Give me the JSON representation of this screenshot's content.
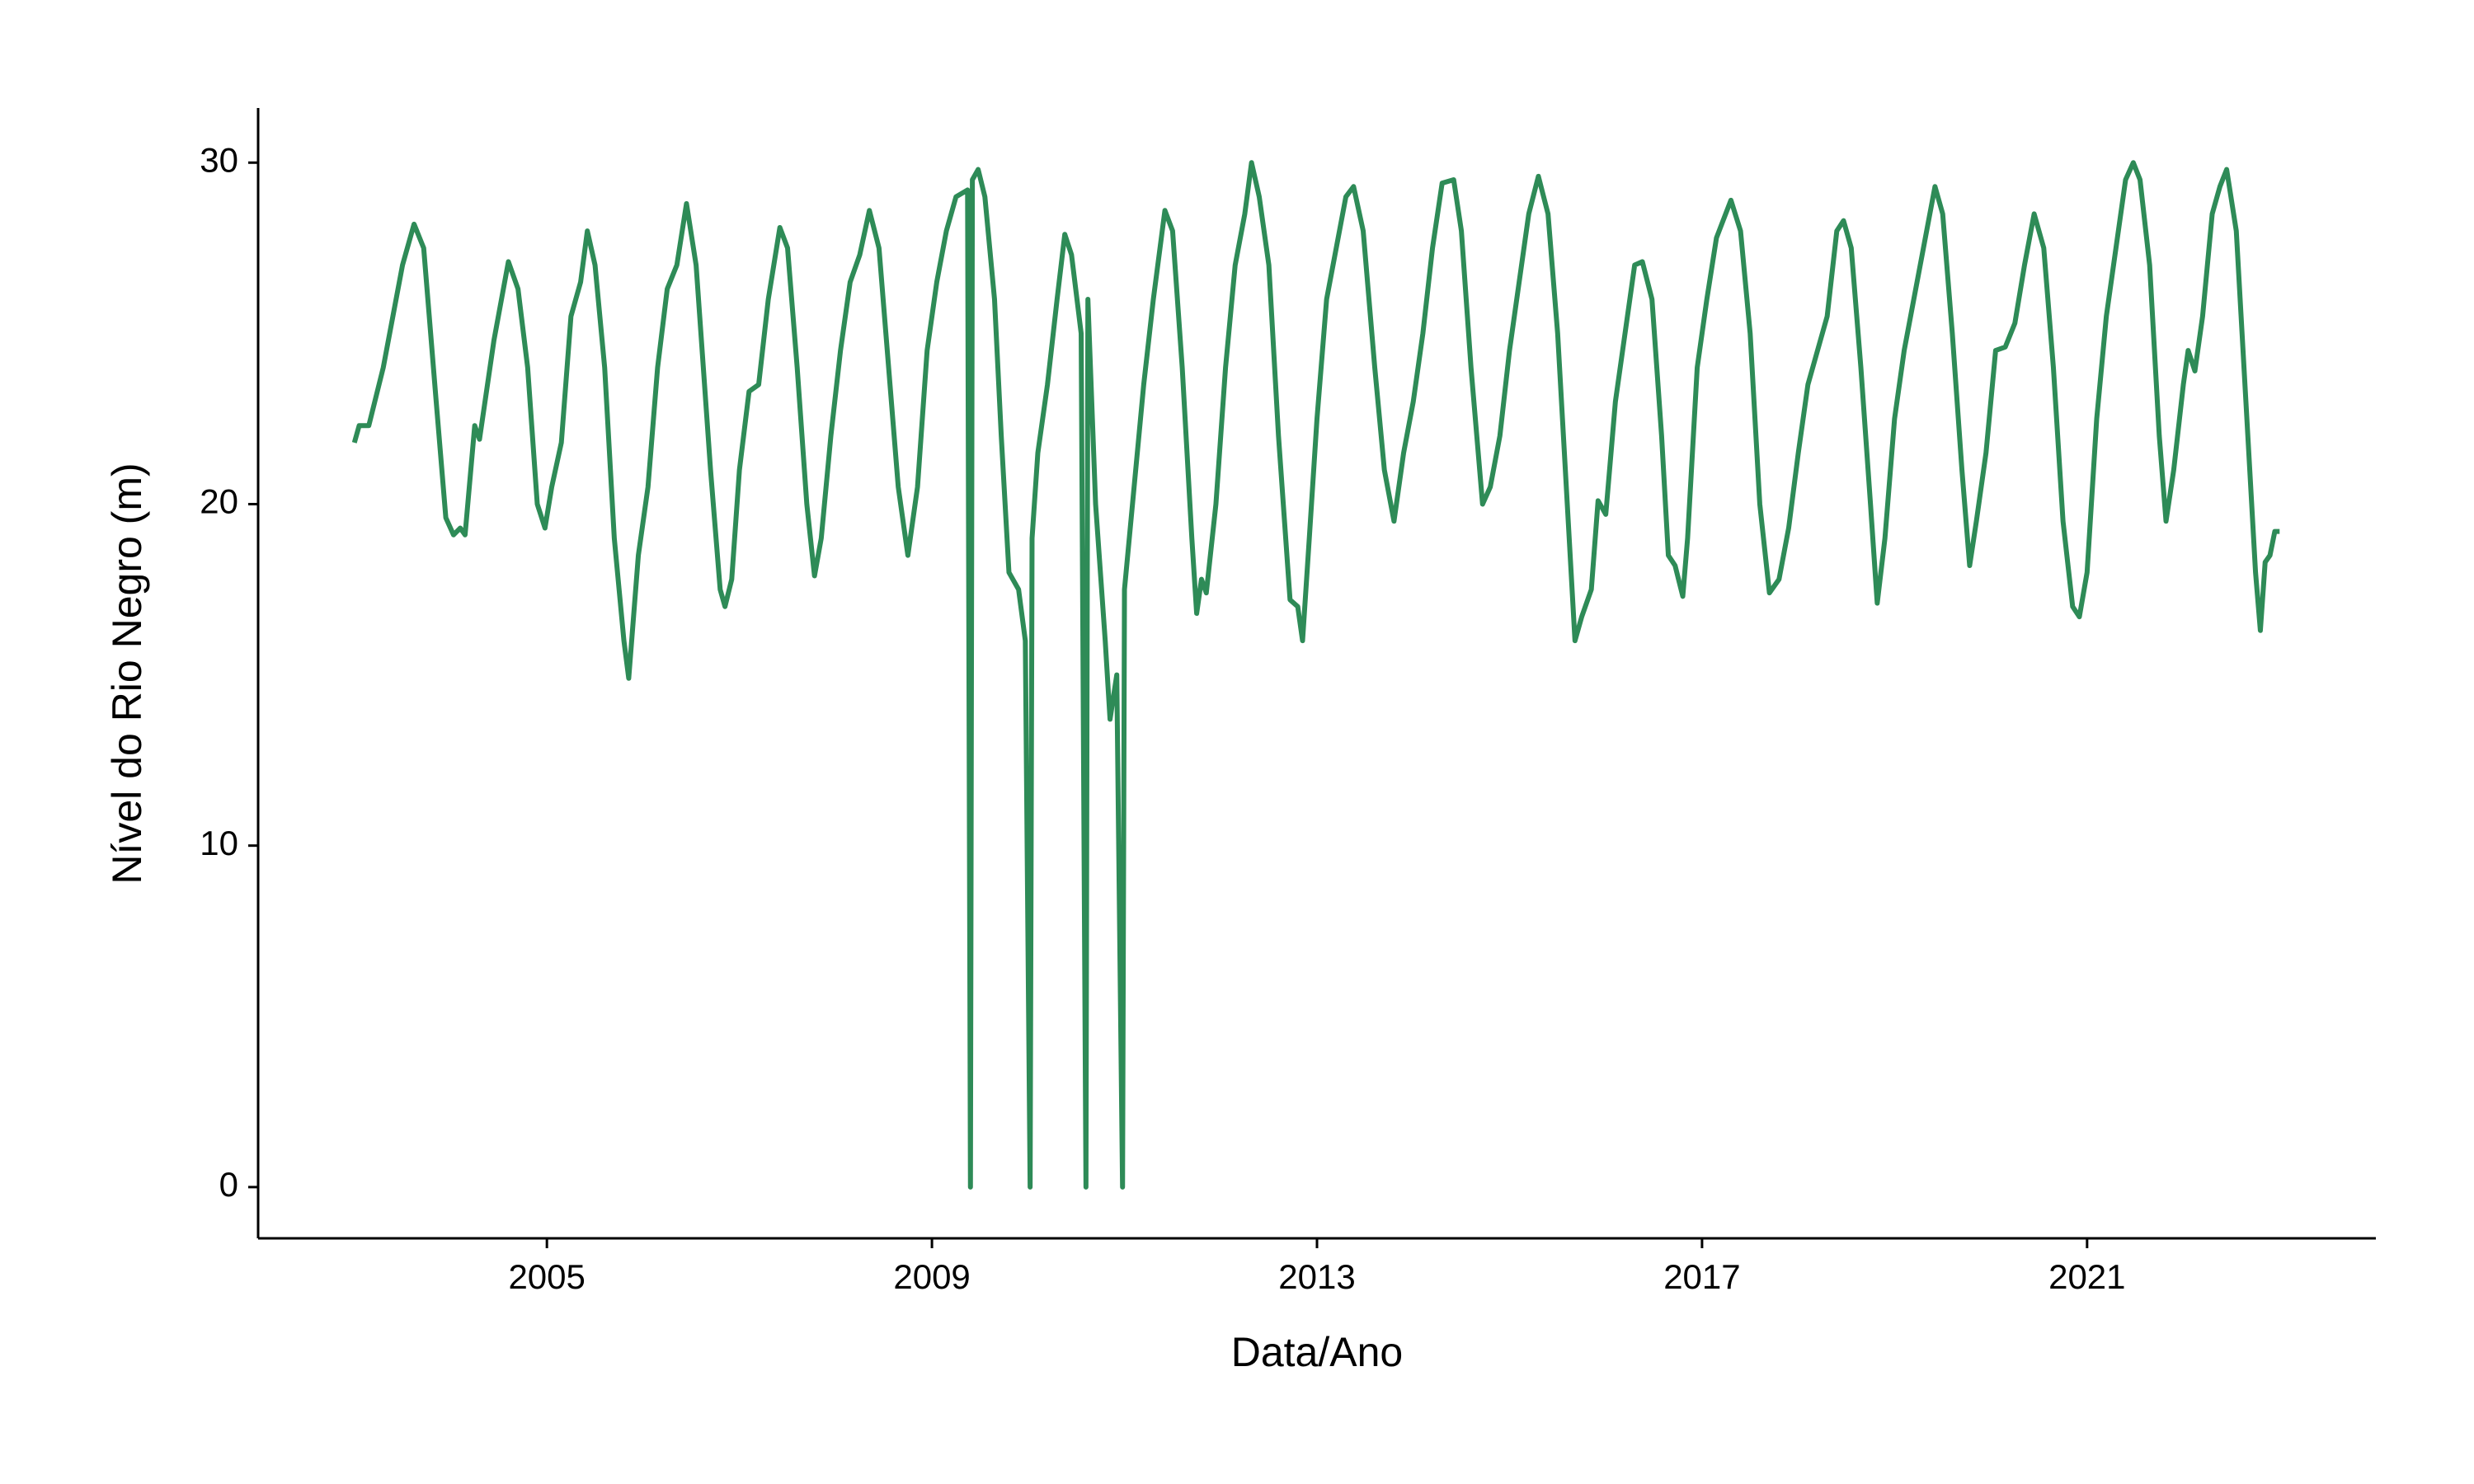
{
  "chart_data": {
    "type": "line",
    "xlabel": "Data/Ano",
    "ylabel": "Nível do Rio Negro (m)",
    "color": "#2e8b57",
    "xlim": [
      2002,
      2024
    ],
    "xticks": [
      2005,
      2009,
      2013,
      2017,
      2021
    ],
    "ylim": [
      -1.5,
      31.6
    ],
    "yticks": [
      0,
      10,
      20,
      30
    ],
    "grid": false,
    "x": [
      2003.0,
      2003.05,
      2003.15,
      2003.3,
      2003.5,
      2003.62,
      2003.72,
      2003.85,
      2003.95,
      2004.03,
      2004.1,
      2004.15,
      2004.25,
      2004.3,
      2004.45,
      2004.6,
      2004.7,
      2004.8,
      2004.9,
      2004.98,
      2005.05,
      2005.15,
      2005.25,
      2005.35,
      2005.42,
      2005.5,
      2005.6,
      2005.7,
      2005.8,
      2005.85,
      2005.95,
      2006.05,
      2006.15,
      2006.25,
      2006.35,
      2006.45,
      2006.55,
      2006.7,
      2006.8,
      2006.85,
      2006.92,
      2007.0,
      2007.1,
      2007.2,
      2007.3,
      2007.42,
      2007.5,
      2007.6,
      2007.7,
      2007.78,
      2007.85,
      2007.95,
      2008.05,
      2008.15,
      2008.25,
      2008.35,
      2008.45,
      2008.55,
      2008.65,
      2008.75,
      2008.85,
      2008.95,
      2009.05,
      2009.15,
      2009.25,
      2009.37,
      2009.4,
      2009.42,
      2009.48,
      2009.55,
      2009.65,
      2009.72,
      2009.8,
      2009.9,
      2009.97,
      2010.02,
      2010.04,
      2010.1,
      2010.2,
      2010.3,
      2010.38,
      2010.45,
      2010.55,
      2010.6,
      2010.62,
      2010.7,
      2010.8,
      2010.85,
      2010.92,
      2010.98,
      2011.0,
      2011.1,
      2011.2,
      2011.3,
      2011.42,
      2011.5,
      2011.6,
      2011.7,
      2011.75,
      2011.8,
      2011.85,
      2011.95,
      2012.05,
      2012.15,
      2012.25,
      2012.32,
      2012.4,
      2012.5,
      2012.6,
      2012.72,
      2012.8,
      2012.85,
      2012.92,
      2013.0,
      2013.1,
      2013.2,
      2013.3,
      2013.38,
      2013.48,
      2013.6,
      2013.7,
      2013.8,
      2013.9,
      2014.0,
      2014.1,
      2014.2,
      2014.3,
      2014.42,
      2014.5,
      2014.6,
      2014.72,
      2014.8,
      2014.9,
      2015.0,
      2015.1,
      2015.2,
      2015.3,
      2015.4,
      2015.5,
      2015.6,
      2015.68,
      2015.75,
      2015.85,
      2015.92,
      2016.0,
      2016.1,
      2016.2,
      2016.3,
      2016.38,
      2016.48,
      2016.58,
      2016.65,
      2016.72,
      2016.8,
      2016.85,
      2016.95,
      2017.05,
      2017.15,
      2017.3,
      2017.4,
      2017.5,
      2017.6,
      2017.7,
      2017.8,
      2017.9,
      2018.0,
      2018.1,
      2018.2,
      2018.3,
      2018.4,
      2018.47,
      2018.55,
      2018.65,
      2018.75,
      2018.82,
      2018.9,
      2019.0,
      2019.1,
      2019.2,
      2019.3,
      2019.42,
      2019.5,
      2019.6,
      2019.7,
      2019.78,
      2019.85,
      2019.95,
      2020.05,
      2020.15,
      2020.25,
      2020.35,
      2020.45,
      2020.55,
      2020.65,
      2020.75,
      2020.85,
      2020.92,
      2021.0,
      2021.1,
      2021.2,
      2021.3,
      2021.4,
      2021.48,
      2021.55,
      2021.65,
      2021.75,
      2021.82,
      2021.9,
      2022.0,
      2022.05,
      2022.12,
      2022.2,
      2022.3,
      2022.38,
      2022.45,
      2022.55,
      2022.65,
      2022.75,
      2022.8,
      2022.85,
      2022.9,
      2022.95,
      2023.0
    ],
    "values": [
      21.8,
      22.3,
      22.3,
      24,
      27,
      28.2,
      27.5,
      23,
      19.6,
      19.1,
      19.3,
      19.1,
      22.3,
      21.9,
      24.8,
      27.1,
      26.3,
      24,
      20,
      19.3,
      20.5,
      21.8,
      25.5,
      26.5,
      28.0,
      27,
      24,
      19,
      16,
      14.9,
      18.5,
      20.5,
      24,
      26.3,
      27,
      28.8,
      27,
      21,
      17.5,
      17,
      17.8,
      21,
      23.3,
      23.5,
      26,
      28.1,
      27.5,
      24,
      20,
      17.9,
      19,
      22,
      24.5,
      26.5,
      27.3,
      28.6,
      27.5,
      24,
      20.5,
      18.5,
      20.5,
      24.5,
      26.5,
      28,
      29,
      29.2,
      0,
      29.5,
      29.8,
      29,
      26,
      22,
      18,
      17.5,
      16,
      0,
      19,
      21.5,
      23.5,
      26,
      27.9,
      27.3,
      25,
      0,
      26,
      20,
      16,
      13.7,
      15,
      0,
      17.5,
      20.5,
      23.5,
      26,
      28.6,
      28,
      24,
      19,
      16.8,
      17.8,
      17.4,
      20,
      24,
      27,
      28.5,
      30.0,
      29,
      27,
      22,
      17.2,
      17,
      16,
      19,
      22.5,
      26,
      27.5,
      29,
      29.3,
      28,
      24,
      21,
      19.5,
      21.5,
      23,
      25,
      27.5,
      29.4,
      29.5,
      28,
      24,
      20,
      20.5,
      22,
      24.5,
      26.5,
      28.5,
      29.6,
      28.5,
      25,
      20,
      16,
      16.7,
      17.5,
      20.1,
      19.7,
      23,
      25,
      27,
      27.1,
      26,
      22,
      18.5,
      18.2,
      17.3,
      19,
      24,
      26,
      27.8,
      28.9,
      28,
      25,
      20,
      17.4,
      17.8,
      19.3,
      21.5,
      23.5,
      24.5,
      25.5,
      28,
      28.3,
      27.5,
      24,
      20,
      17.1,
      19,
      22.5,
      24.5,
      26,
      27.5,
      29.3,
      28.5,
      25,
      21,
      18.2,
      19.5,
      21.5,
      24.5,
      24.6,
      25.3,
      27,
      28.5,
      27.5,
      24,
      19.5,
      17,
      16.7,
      18,
      22.5,
      25.5,
      27.5,
      29.5,
      30.0,
      29.5,
      27,
      22,
      19.5,
      21,
      23.5,
      24.5,
      23.9,
      25.5,
      28.5,
      29.3,
      29.8,
      28,
      23,
      18,
      16.3,
      18.3,
      18.5,
      19.2,
      19.2
    ]
  }
}
